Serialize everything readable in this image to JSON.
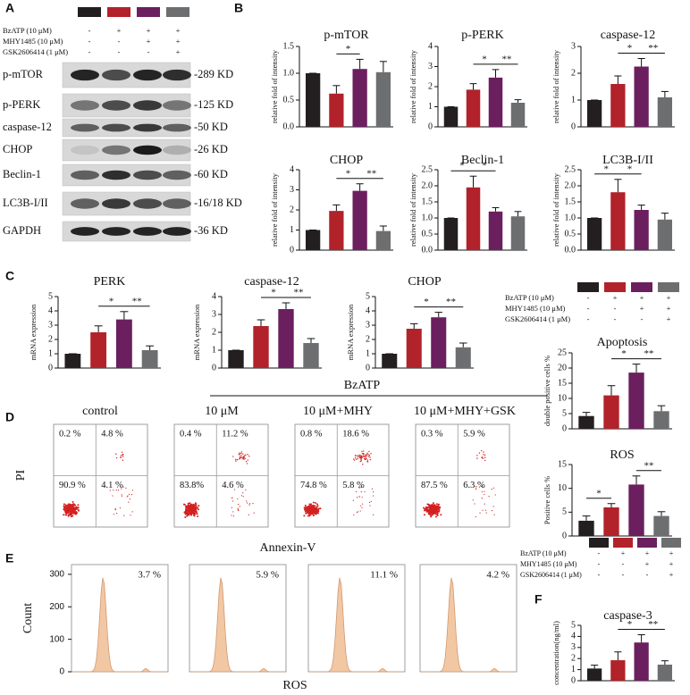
{
  "panels": [
    "A",
    "B",
    "C",
    "D",
    "E",
    "F"
  ],
  "conditions": {
    "colors": [
      "#231f20",
      "#b2222a",
      "#6b1f5e",
      "#6d6e70"
    ],
    "rows": [
      {
        "label": "BzATP (10 μM)",
        "signs": [
          "-",
          "+",
          "+",
          "+"
        ]
      },
      {
        "label": "MHY1485 (10 μM)",
        "signs": [
          "-",
          "-",
          "+",
          "+"
        ]
      },
      {
        "label": "GSK2606414 (1 μM)",
        "signs": [
          "-",
          "-",
          "-",
          "+"
        ]
      }
    ]
  },
  "blots": {
    "rows": [
      {
        "protein": "p-mTOR",
        "size": "-289 KD"
      },
      {
        "protein": "p-PERK",
        "size": "-125 KD"
      },
      {
        "protein": "caspase-12",
        "size": "-50 KD"
      },
      {
        "protein": "CHOP",
        "size": "-26 KD"
      },
      {
        "protein": "Beclin-1",
        "size": "-60 KD"
      },
      {
        "protein": "LC3B-I/II",
        "size": "-16/18 KD"
      },
      {
        "protein": "GAPDH",
        "size": "-36 KD"
      }
    ]
  },
  "flow": {
    "header": "BzATP",
    "xlabel": "Annexin-V",
    "ylabel": "PI",
    "panels": [
      {
        "title": "control",
        "quadrants": [
          "0.2 %",
          "4.8 %",
          "90.9 %",
          "4.1 %"
        ]
      },
      {
        "title": "10 μM",
        "quadrants": [
          "0.4 %",
          "11.2 %",
          "83.8%",
          "4.6 %"
        ]
      },
      {
        "title": "10 μM+MHY",
        "quadrants": [
          "0.8 %",
          "18.6 %",
          "74.8 %",
          "5.8 %"
        ]
      },
      {
        "title": "10 μM+MHY+GSK",
        "quadrants": [
          "0.3 %",
          "5.9 %",
          "87.5 %",
          "6.3 %"
        ]
      }
    ]
  },
  "histograms": {
    "ylabel": "Count",
    "xlabel": "ROS",
    "ylim": [
      0,
      330
    ],
    "yticks": [
      0,
      100,
      200,
      300
    ],
    "panels": [
      "3.7 %",
      "5.9 %",
      "11.1 %",
      "4.2 %"
    ]
  },
  "chart_data": [
    {
      "type": "bar",
      "title": "p-mTOR",
      "ylabel": "relative fold of intensity",
      "categories": [
        null,
        null,
        null,
        null
      ],
      "values": [
        1.0,
        0.62,
        1.08,
        1.02
      ],
      "errors": [
        0,
        0.15,
        0.18,
        0.2
      ],
      "colors": [
        "#231f20",
        "#b2222a",
        "#6b1f5e",
        "#6d6e70"
      ],
      "ylim": [
        0,
        1.5
      ],
      "yticks": [
        {
          "value": 0,
          "label": "0.0"
        },
        0.5,
        {
          "value": 1,
          "label": "1.0"
        },
        1.5
      ],
      "annotations": [
        "*"
      ]
    },
    {
      "type": "bar",
      "title": "p-PERK",
      "ylabel": "relative fold of intensity",
      "categories": [
        null,
        null,
        null,
        null
      ],
      "values": [
        1.0,
        1.85,
        2.45,
        1.2
      ],
      "errors": [
        0,
        0.3,
        0.4,
        0.15
      ],
      "colors": [
        "#231f20",
        "#b2222a",
        "#6b1f5e",
        "#6d6e70"
      ],
      "ylim": [
        0,
        4
      ],
      "yticks": [
        0,
        1,
        2,
        3,
        4
      ],
      "annotations": [
        "*",
        "**"
      ]
    },
    {
      "type": "bar",
      "title": "caspase-12",
      "ylabel": "relative fold of intensity",
      "categories": [
        null,
        null,
        null,
        null
      ],
      "values": [
        1.0,
        1.6,
        2.25,
        1.1
      ],
      "errors": [
        0,
        0.3,
        0.3,
        0.22
      ],
      "colors": [
        "#231f20",
        "#b2222a",
        "#6b1f5e",
        "#6d6e70"
      ],
      "ylim": [
        0,
        3
      ],
      "yticks": [
        0,
        1,
        2,
        3
      ],
      "annotations": [
        "*",
        "**"
      ]
    },
    {
      "type": "bar",
      "title": "CHOP",
      "ylabel": "relative fold of intensity",
      "categories": [
        null,
        null,
        null,
        null
      ],
      "values": [
        1.0,
        1.95,
        2.95,
        0.95
      ],
      "errors": [
        0,
        0.3,
        0.35,
        0.25
      ],
      "colors": [
        "#231f20",
        "#b2222a",
        "#6b1f5e",
        "#6d6e70"
      ],
      "ylim": [
        0,
        4
      ],
      "yticks": [
        0,
        1,
        2,
        3,
        4
      ],
      "annotations": [
        "*",
        "**"
      ]
    },
    {
      "type": "bar",
      "title": "Beclin-1",
      "ylabel": "relative fold of intensity",
      "categories": [
        null,
        null,
        null,
        null
      ],
      "values": [
        1.0,
        1.95,
        1.2,
        1.05
      ],
      "errors": [
        0,
        0.35,
        0.12,
        0.15
      ],
      "colors": [
        "#231f20",
        "#b2222a",
        "#6b1f5e",
        "#6d6e70"
      ],
      "ylim": [
        0,
        2.5
      ],
      "yticks": [
        {
          "value": 0,
          "label": "0.0"
        },
        0.5,
        {
          "value": 1,
          "label": "1.0"
        },
        1.5,
        {
          "value": 2,
          "label": "2.0"
        },
        2.5
      ],
      "annotations": [
        "*",
        "*"
      ]
    },
    {
      "type": "bar",
      "title": "LC3B-I/II",
      "ylabel": "relative fold of intensity",
      "categories": [
        null,
        null,
        null,
        null
      ],
      "values": [
        1.0,
        1.8,
        1.25,
        0.95
      ],
      "errors": [
        0,
        0.4,
        0.15,
        0.2
      ],
      "colors": [
        "#231f20",
        "#b2222a",
        "#6b1f5e",
        "#6d6e70"
      ],
      "ylim": [
        0,
        2.5
      ],
      "yticks": [
        {
          "value": 0,
          "label": "0.0"
        },
        0.5,
        {
          "value": 1,
          "label": "1.0"
        },
        1.5,
        {
          "value": 2,
          "label": "2.0"
        },
        2.5
      ],
      "annotations": [
        "*",
        "*"
      ]
    },
    {
      "type": "bar",
      "title": "PERK",
      "ylabel": "mRNA expression",
      "categories": [
        null,
        null,
        null,
        null
      ],
      "values": [
        1.0,
        2.5,
        3.4,
        1.25
      ],
      "errors": [
        0,
        0.45,
        0.55,
        0.3
      ],
      "colors": [
        "#231f20",
        "#b2222a",
        "#6b1f5e",
        "#6d6e70"
      ],
      "ylim": [
        0,
        5
      ],
      "yticks": [
        0,
        1,
        2,
        3,
        4,
        5
      ],
      "annotations": [
        "*",
        "**"
      ]
    },
    {
      "type": "bar",
      "title": "caspase-12",
      "ylabel": "mRNA expression",
      "categories": [
        null,
        null,
        null,
        null
      ],
      "values": [
        1.0,
        2.35,
        3.3,
        1.4
      ],
      "errors": [
        0,
        0.35,
        0.35,
        0.25
      ],
      "colors": [
        "#231f20",
        "#b2222a",
        "#6b1f5e",
        "#6d6e70"
      ],
      "ylim": [
        0,
        4
      ],
      "yticks": [
        0,
        1,
        2,
        3,
        4
      ],
      "annotations": [
        "*",
        "**"
      ]
    },
    {
      "type": "bar",
      "title": "CHOP",
      "ylabel": "mRNA expression",
      "categories": [
        null,
        null,
        null,
        null
      ],
      "values": [
        1.0,
        2.75,
        3.55,
        1.45
      ],
      "errors": [
        0,
        0.35,
        0.35,
        0.3
      ],
      "colors": [
        "#231f20",
        "#b2222a",
        "#6b1f5e",
        "#6d6e70"
      ],
      "ylim": [
        0,
        5
      ],
      "yticks": [
        0,
        1,
        2,
        3,
        4,
        5
      ],
      "annotations": [
        "*",
        "**"
      ]
    },
    {
      "type": "bar",
      "title": "Apoptosis",
      "ylabel": "double positive cells %",
      "categories": [
        null,
        null,
        null,
        null
      ],
      "values": [
        4.2,
        11,
        18.5,
        5.8
      ],
      "errors": [
        1.2,
        3.2,
        2.8,
        1.8
      ],
      "colors": [
        "#231f20",
        "#b2222a",
        "#6b1f5e",
        "#6d6e70"
      ],
      "ylim": [
        0,
        25
      ],
      "yticks": [
        0,
        5,
        10,
        15,
        20,
        25
      ],
      "annotations": [
        "*",
        "**"
      ]
    },
    {
      "type": "bar",
      "title": "ROS",
      "ylabel": "Positive cells %",
      "categories": [
        null,
        null,
        null,
        null
      ],
      "values": [
        3.2,
        6,
        10.8,
        4.2
      ],
      "errors": [
        1,
        0.8,
        1.8,
        0.9
      ],
      "colors": [
        "#231f20",
        "#b2222a",
        "#6b1f5e",
        "#6d6e70"
      ],
      "ylim": [
        0,
        15
      ],
      "yticks": [
        0,
        5,
        10,
        15
      ],
      "annotations": [
        "*",
        "**"
      ]
    },
    {
      "type": "bar",
      "title": "caspase-3",
      "ylabel": "concentration(ng/ml)",
      "categories": [
        null,
        null,
        null,
        null
      ],
      "values": [
        1.1,
        1.85,
        3.45,
        1.45
      ],
      "errors": [
        0.3,
        0.75,
        0.7,
        0.35
      ],
      "colors": [
        "#231f20",
        "#b2222a",
        "#6b1f5e",
        "#6d6e70"
      ],
      "ylim": [
        0,
        5
      ],
      "yticks": [
        0,
        1,
        2,
        3,
        4,
        5
      ],
      "annotations": [
        "*",
        "**"
      ]
    }
  ]
}
